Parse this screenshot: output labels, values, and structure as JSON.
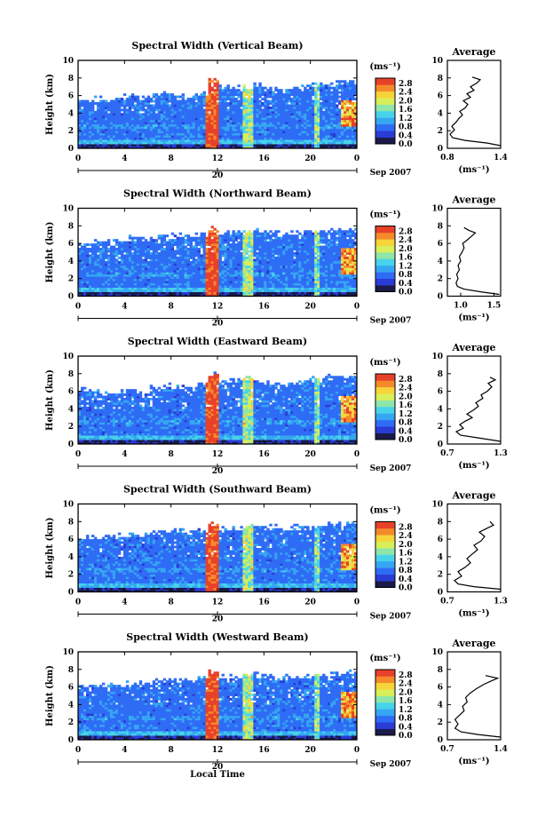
{
  "figure": {
    "xlabel": "Local Time",
    "date_label": "Sep 2007",
    "height_label": "Height (km)",
    "unit_label": "(ms⁻¹)",
    "average_title": "Average",
    "day_label": "20"
  },
  "colors": {
    "background": "#ffffff",
    "colormap": [
      "#1a1a4a",
      "#2a3bd6",
      "#2f6cf5",
      "#36a6f2",
      "#47d3ea",
      "#8ee6a8",
      "#d8ef5a",
      "#f7d43a",
      "#f58a2a",
      "#e8412a"
    ]
  },
  "chart_data": [
    {
      "type": "heatmap",
      "title": "Spectral Width (Vertical Beam)",
      "ylabel": "Height (km)",
      "xlabel": "",
      "x_ticks": [
        "0",
        "4",
        "8",
        "12",
        "16",
        "20",
        "0"
      ],
      "y_ticks": [
        "0",
        "2",
        "4",
        "6",
        "8",
        "10"
      ],
      "xlim": [
        0,
        24
      ],
      "ylim": [
        0,
        10
      ],
      "colorbar": {
        "unit": "(ms⁻¹)",
        "ticks": [
          "0.0",
          "0.4",
          "0.8",
          "1.2",
          "1.6",
          "2.0",
          "2.4",
          "2.8"
        ],
        "range": [
          0,
          2.8
        ]
      },
      "top_height_km": [
        5.5,
        5.6,
        5.4,
        5.8,
        6.0,
        5.7,
        5.9,
        6.3,
        6.2,
        5.8,
        6.1,
        8.0,
        7.2,
        6.8,
        7.0,
        7.3,
        6.8,
        6.6,
        6.9,
        7.0,
        7.4,
        7.2,
        7.5,
        7.6
      ],
      "average_profile": {
        "title": "Average",
        "xlabel": "(ms⁻¹)",
        "x_ticks": [
          "0.8",
          "1.4"
        ],
        "xlim": [
          0.8,
          1.4
        ],
        "y_ticks": [
          "0",
          "2",
          "4",
          "6",
          "8",
          "10"
        ],
        "points": [
          [
            1.4,
            0.3
          ],
          [
            1.25,
            0.6
          ],
          [
            1.0,
            0.9
          ],
          [
            0.86,
            1.2
          ],
          [
            0.83,
            1.6
          ],
          [
            0.88,
            2.1
          ],
          [
            0.85,
            2.5
          ],
          [
            0.9,
            3.0
          ],
          [
            0.93,
            3.4
          ],
          [
            0.97,
            3.8
          ],
          [
            0.94,
            4.2
          ],
          [
            1.0,
            4.6
          ],
          [
            1.03,
            5.0
          ],
          [
            0.98,
            5.4
          ],
          [
            1.06,
            5.8
          ],
          [
            1.02,
            6.2
          ],
          [
            1.1,
            6.6
          ],
          [
            1.06,
            7.0
          ],
          [
            1.13,
            7.4
          ],
          [
            1.17,
            7.8
          ],
          [
            1.08,
            8.1
          ]
        ]
      }
    },
    {
      "type": "heatmap",
      "title": "Spectral Width (Northward Beam)",
      "ylabel": "Height (km)",
      "xlabel": "",
      "x_ticks": [
        "0",
        "4",
        "8",
        "12",
        "16",
        "20",
        "0"
      ],
      "y_ticks": [
        "0",
        "2",
        "4",
        "6",
        "8",
        "10"
      ],
      "xlim": [
        0,
        24
      ],
      "ylim": [
        0,
        10
      ],
      "colorbar": {
        "unit": "(ms⁻¹)",
        "ticks": [
          "0.0",
          "0.4",
          "0.8",
          "1.2",
          "1.6",
          "2.0",
          "2.4",
          "2.8"
        ],
        "range": [
          0,
          2.8
        ]
      },
      "top_height_km": [
        5.9,
        6.1,
        6.4,
        6.3,
        6.5,
        6.6,
        6.7,
        6.9,
        6.9,
        6.8,
        7.0,
        7.6,
        7.3,
        7.2,
        7.4,
        7.5,
        7.3,
        7.1,
        7.2,
        7.3,
        7.5,
        7.4,
        7.6,
        7.6
      ],
      "average_profile": {
        "title": "Average",
        "xlabel": "(ms⁻¹)",
        "x_ticks": [
          "1.0",
          "1.5"
        ],
        "xlim": [
          0.8,
          1.6
        ],
        "y_ticks": [
          "0",
          "2",
          "4",
          "6",
          "8",
          "10"
        ],
        "points": [
          [
            1.58,
            0.2
          ],
          [
            1.3,
            0.5
          ],
          [
            1.05,
            0.8
          ],
          [
            0.95,
            1.1
          ],
          [
            0.93,
            1.5
          ],
          [
            0.96,
            2.0
          ],
          [
            0.94,
            2.5
          ],
          [
            0.98,
            3.0
          ],
          [
            0.96,
            3.5
          ],
          [
            1.0,
            4.0
          ],
          [
            0.98,
            4.5
          ],
          [
            1.02,
            5.0
          ],
          [
            1.05,
            5.5
          ],
          [
            1.03,
            6.0
          ],
          [
            1.1,
            6.4
          ],
          [
            1.16,
            6.8
          ],
          [
            1.22,
            7.2
          ],
          [
            1.12,
            7.5
          ],
          [
            1.05,
            7.8
          ]
        ]
      }
    },
    {
      "type": "heatmap",
      "title": "Spectral Width (Eastward Beam)",
      "ylabel": "Height (km)",
      "xlabel": "",
      "x_ticks": [
        "0",
        "4",
        "8",
        "12",
        "16",
        "20",
        "0"
      ],
      "y_ticks": [
        "0",
        "2",
        "4",
        "6",
        "8",
        "10"
      ],
      "xlim": [
        0,
        24
      ],
      "ylim": [
        0,
        10
      ],
      "colorbar": {
        "unit": "(ms⁻¹)",
        "ticks": [
          "0.0",
          "0.4",
          "0.8",
          "1.2",
          "1.6",
          "2.0",
          "2.4",
          "2.8"
        ],
        "range": [
          0,
          2.8
        ]
      },
      "top_height_km": [
        6.3,
        6.0,
        5.8,
        6.1,
        6.2,
        5.9,
        6.4,
        6.6,
        6.5,
        6.3,
        6.8,
        7.8,
        7.0,
        7.2,
        7.6,
        7.3,
        6.9,
        6.6,
        7.0,
        7.2,
        7.4,
        7.6,
        7.7,
        7.8
      ],
      "average_profile": {
        "title": "Average",
        "xlabel": "(ms⁻¹)",
        "x_ticks": [
          "0.7",
          "1.3"
        ],
        "xlim": [
          0.7,
          1.3
        ],
        "y_ticks": [
          "0",
          "2",
          "4",
          "6",
          "8",
          "10"
        ],
        "points": [
          [
            1.3,
            0.3
          ],
          [
            1.05,
            0.7
          ],
          [
            0.85,
            1.0
          ],
          [
            0.8,
            1.4
          ],
          [
            0.88,
            1.8
          ],
          [
            0.84,
            2.2
          ],
          [
            0.9,
            2.6
          ],
          [
            0.98,
            3.0
          ],
          [
            0.92,
            3.4
          ],
          [
            1.0,
            3.9
          ],
          [
            1.05,
            4.3
          ],
          [
            1.02,
            4.7
          ],
          [
            1.1,
            5.2
          ],
          [
            1.08,
            5.6
          ],
          [
            1.15,
            6.0
          ],
          [
            1.2,
            6.5
          ],
          [
            1.16,
            6.9
          ],
          [
            1.24,
            7.3
          ],
          [
            1.18,
            7.6
          ]
        ]
      }
    },
    {
      "type": "heatmap",
      "title": "Spectral Width (Southward Beam)",
      "ylabel": "Height (km)",
      "xlabel": "",
      "x_ticks": [
        "0",
        "4",
        "8",
        "12",
        "16",
        "20",
        "0"
      ],
      "y_ticks": [
        "0",
        "2",
        "4",
        "6",
        "8",
        "10"
      ],
      "xlim": [
        0,
        24
      ],
      "ylim": [
        0,
        10
      ],
      "colorbar": {
        "unit": "(ms⁻¹)",
        "ticks": [
          "0.0",
          "0.4",
          "0.8",
          "1.2",
          "1.6",
          "2.0",
          "2.4",
          "2.8"
        ],
        "range": [
          0,
          2.8
        ]
      },
      "top_height_km": [
        6.1,
        6.2,
        6.4,
        6.3,
        6.5,
        6.6,
        6.8,
        7.0,
        7.1,
        6.9,
        7.1,
        7.7,
        7.3,
        7.2,
        7.5,
        7.4,
        7.4,
        7.2,
        7.3,
        7.4,
        7.5,
        7.6,
        7.7,
        7.8
      ],
      "average_profile": {
        "title": "Average",
        "xlabel": "(ms⁻¹)",
        "x_ticks": [
          "0.7",
          "1.3"
        ],
        "xlim": [
          0.7,
          1.3
        ],
        "y_ticks": [
          "0",
          "2",
          "4",
          "6",
          "8",
          "10"
        ],
        "points": [
          [
            1.3,
            0.3
          ],
          [
            1.0,
            0.6
          ],
          [
            0.82,
            0.9
          ],
          [
            0.78,
            1.3
          ],
          [
            0.86,
            1.8
          ],
          [
            0.82,
            2.3
          ],
          [
            0.9,
            2.8
          ],
          [
            0.96,
            3.3
          ],
          [
            0.92,
            3.8
          ],
          [
            0.98,
            4.3
          ],
          [
            1.04,
            4.8
          ],
          [
            1.0,
            5.3
          ],
          [
            1.08,
            5.8
          ],
          [
            1.12,
            6.3
          ],
          [
            1.06,
            6.8
          ],
          [
            1.14,
            7.2
          ],
          [
            1.22,
            7.6
          ],
          [
            1.18,
            8.0
          ]
        ]
      }
    },
    {
      "type": "heatmap",
      "title": "Spectral Width (Westward Beam)",
      "ylabel": "Height (km)",
      "xlabel": "Local Time",
      "x_ticks": [
        "0",
        "4",
        "8",
        "12",
        "16",
        "20",
        "0"
      ],
      "y_ticks": [
        "0",
        "2",
        "4",
        "6",
        "8",
        "10"
      ],
      "xlim": [
        0,
        24
      ],
      "ylim": [
        0,
        10
      ],
      "colorbar": {
        "unit": "(ms⁻¹)",
        "ticks": [
          "0.0",
          "0.4",
          "0.8",
          "1.2",
          "1.6",
          "2.0",
          "2.4",
          "2.8"
        ],
        "range": [
          0,
          2.8
        ]
      },
      "top_height_km": [
        6.0,
        6.1,
        6.3,
        6.2,
        6.4,
        6.5,
        6.6,
        6.8,
        6.9,
        6.8,
        7.0,
        7.8,
        7.2,
        7.1,
        7.4,
        7.3,
        7.2,
        7.0,
        7.1,
        7.2,
        7.4,
        7.4,
        7.5,
        7.6
      ],
      "average_profile": {
        "title": "Average",
        "xlabel": "(ms⁻¹)",
        "x_ticks": [
          "0.7",
          "1.4"
        ],
        "xlim": [
          0.7,
          1.4
        ],
        "y_ticks": [
          "0",
          "2",
          "4",
          "6",
          "8",
          "10"
        ],
        "points": [
          [
            1.4,
            0.3
          ],
          [
            1.1,
            0.6
          ],
          [
            0.88,
            0.9
          ],
          [
            0.8,
            1.3
          ],
          [
            0.84,
            1.8
          ],
          [
            0.8,
            2.3
          ],
          [
            0.86,
            2.8
          ],
          [
            0.92,
            3.3
          ],
          [
            0.9,
            3.8
          ],
          [
            0.96,
            4.3
          ],
          [
            0.94,
            4.8
          ],
          [
            1.0,
            5.3
          ],
          [
            1.08,
            5.8
          ],
          [
            1.18,
            6.3
          ],
          [
            1.28,
            6.7
          ],
          [
            1.36,
            7.0
          ],
          [
            1.2,
            7.3
          ]
        ]
      }
    }
  ]
}
